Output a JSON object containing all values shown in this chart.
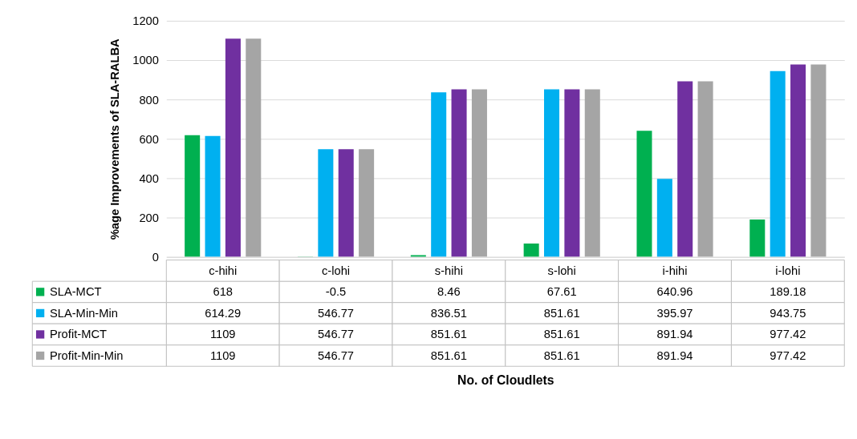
{
  "chart_data": {
    "type": "bar",
    "ylabel": "%age Improvements of SLA-RALBA",
    "annotations": [
      "No. of Cloudlets"
    ],
    "categories": [
      "c-hihi",
      "c-lohi",
      "s-hihi",
      "s-lohi",
      "i-hihi",
      "i-lohi"
    ],
    "series": [
      {
        "name": "SLA-MCT",
        "color": "#00b050",
        "values": [
          618,
          -0.5,
          8.46,
          67.61,
          640.96,
          189.18
        ]
      },
      {
        "name": "SLA-Min-Min",
        "color": "#00b0f0",
        "values": [
          614.29,
          546.77,
          836.51,
          851.61,
          395.97,
          943.75
        ]
      },
      {
        "name": "Profit-MCT",
        "color": "#7030a0",
        "values": [
          1109,
          546.77,
          851.61,
          851.61,
          891.94,
          977.42
        ]
      },
      {
        "name": "Profit-Min-Min",
        "color": "#a5a5a5",
        "values": [
          1109,
          546.77,
          851.61,
          851.61,
          891.94,
          977.42
        ]
      }
    ],
    "ylim": [
      -0.5,
      1200
    ],
    "yticks": [
      0,
      200,
      400,
      600,
      800,
      1000,
      1200
    ],
    "grid": "y",
    "legend": "bottom",
    "data_labels": true
  }
}
